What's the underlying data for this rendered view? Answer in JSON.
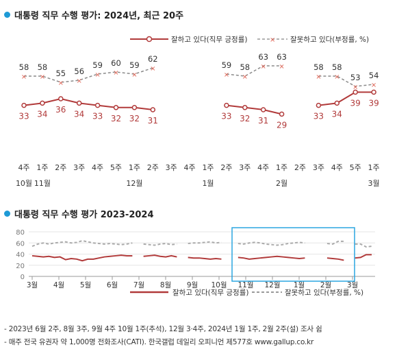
{
  "colors": {
    "positive": "#b13a3a",
    "negative": "#8a8a8a",
    "accent": "#1e9ad6",
    "neg_marker": "#e06050"
  },
  "chart1": {
    "title": "대통령 직무 수행 평가: 2024년, 최근 20주",
    "legend_positive": "잘하고 있다(직무 긍정률)",
    "legend_negative": "잘못하고 있다(부정률, %)"
  },
  "chart2": {
    "title": "대통령 직무 수행 평가 2023-2024",
    "legend_positive": "잘하고 있다(직무 긍정률)",
    "legend_negative": "잘못하고 있다(부정률, %)"
  },
  "notes": [
    "- 2023년 6월 2주, 8월 3주, 9월 4주 10월 1주(추석), 12월 3·4주, 2024년 1월 1주, 2월 2주(설) 조사 쉼",
    "- 매주 전국 유권자 약 1,000명 전화조사(CATI). 한국갤럽 데일리 오피니언 제577호 www.gallup.co.kr"
  ],
  "chart_data": [
    {
      "type": "line",
      "title": "대통령 직무 수행 평가: 2024년, 최근 20주",
      "categories": [
        "4주",
        "1주",
        "2주",
        "3주",
        "4주",
        "5주",
        "1주",
        "2주",
        "3주",
        "4주",
        "1주",
        "2주",
        "3주",
        "4주",
        "1주",
        "2주",
        "3주",
        "4주",
        "5주",
        "1주"
      ],
      "month_labels": [
        {
          "index": 0,
          "label": "10월"
        },
        {
          "index": 1,
          "label": "11월"
        },
        {
          "index": 6,
          "label": "12월"
        },
        {
          "index": 10,
          "label": "1월"
        },
        {
          "index": 14,
          "label": "2월"
        },
        {
          "index": 19,
          "label": "3월"
        }
      ],
      "series": [
        {
          "name": "잘하고 있다(직무 긍정률)",
          "values": [
            33,
            34,
            36,
            34,
            33,
            32,
            32,
            31,
            null,
            null,
            null,
            33,
            32,
            31,
            29,
            null,
            33,
            34,
            39,
            39
          ]
        },
        {
          "name": "잘못하고 있다(부정률, %)",
          "values": [
            58,
            58,
            55,
            56,
            59,
            60,
            59,
            62,
            null,
            null,
            null,
            59,
            58,
            63,
            63,
            null,
            58,
            58,
            53,
            54
          ]
        }
      ],
      "ylim": [
        0,
        100
      ]
    },
    {
      "type": "line",
      "title": "대통령 직무 수행 평가 2023-2024",
      "x_ticks": [
        "3월",
        "4월",
        "5월",
        "6월",
        "7월",
        "8월",
        "9월",
        "10월",
        "11월",
        "12월",
        "1월",
        "2월",
        "3월"
      ],
      "y_ticks": [
        0,
        20,
        40,
        60,
        80
      ],
      "ylim": [
        0,
        80
      ],
      "highlight_range": {
        "from": "10월",
        "to": "3월"
      },
      "series": [
        {
          "name": "잘하고 있다(직무 긍정률)",
          "values": [
            37,
            36,
            35,
            36,
            34,
            35,
            30,
            32,
            31,
            28,
            31,
            31,
            33,
            35,
            36,
            37,
            38,
            37,
            37,
            null,
            36,
            37,
            38,
            36,
            35,
            37,
            35,
            null,
            34,
            33,
            33,
            32,
            31,
            32,
            31,
            null,
            null,
            34,
            33,
            31,
            32,
            33,
            34,
            35,
            36,
            35,
            34,
            33,
            32,
            33,
            null,
            null,
            null,
            33,
            32,
            31,
            29,
            null,
            33,
            34,
            39,
            39
          ]
        },
        {
          "name": "잘못하고 있다(부정률, %)",
          "values": [
            54,
            58,
            60,
            58,
            60,
            61,
            62,
            60,
            61,
            64,
            62,
            60,
            59,
            58,
            59,
            58,
            57,
            58,
            60,
            null,
            58,
            57,
            56,
            58,
            59,
            57,
            58,
            null,
            59,
            60,
            60,
            61,
            62,
            60,
            61,
            null,
            null,
            59,
            58,
            60,
            61,
            60,
            58,
            57,
            56,
            57,
            59,
            60,
            61,
            60,
            null,
            null,
            null,
            59,
            58,
            63,
            63,
            null,
            58,
            58,
            53,
            54
          ]
        }
      ]
    }
  ]
}
